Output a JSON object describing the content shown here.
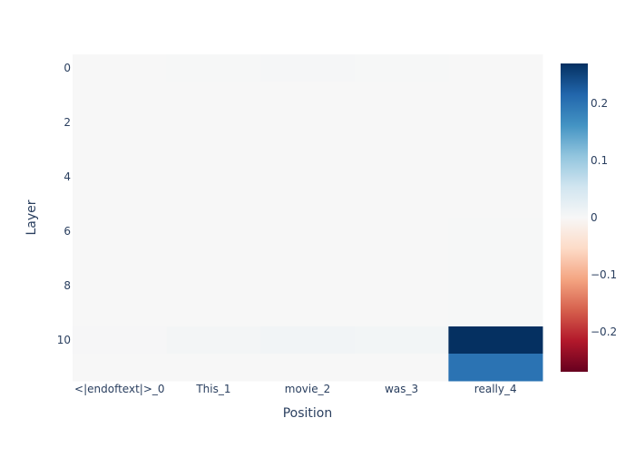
{
  "chart_data": {
    "type": "heatmap",
    "title": "",
    "xlabel": "Position",
    "ylabel": "Layer",
    "x_categories": [
      "<|endoftext|>_0",
      "This_1",
      "movie_2",
      "was_3",
      "really_4"
    ],
    "y_values": [
      0,
      1,
      2,
      3,
      4,
      5,
      6,
      7,
      8,
      9,
      10,
      11
    ],
    "y_tick_labels": [
      "0",
      "2",
      "4",
      "6",
      "8",
      "10"
    ],
    "y_tick_values": [
      0,
      2,
      4,
      6,
      8,
      10
    ],
    "y_reversed": true,
    "z": [
      [
        0.0,
        0.001,
        0.003,
        0.001,
        0.0
      ],
      [
        0.0,
        0.0,
        0.0,
        0.0,
        0.0
      ],
      [
        0.0,
        0.0,
        0.0,
        0.0,
        0.0
      ],
      [
        0.0,
        0.0,
        0.0,
        0.0,
        0.0
      ],
      [
        0.0,
        0.0,
        0.0,
        0.0,
        0.0
      ],
      [
        0.0,
        0.0,
        0.0,
        0.0,
        0.0
      ],
      [
        0.0,
        0.0,
        0.0,
        0.0,
        0.001
      ],
      [
        0.0,
        0.0,
        0.0,
        0.0,
        0.001
      ],
      [
        0.0,
        0.0,
        0.0,
        0.0,
        0.001
      ],
      [
        0.0,
        0.0,
        0.0,
        0.0,
        0.001
      ],
      [
        0.002,
        0.006,
        0.008,
        0.007,
        0.27
      ],
      [
        0.0,
        0.0,
        0.0,
        0.0,
        0.2
      ]
    ],
    "colorbar": {
      "min": -0.27,
      "max": 0.27,
      "tick_values": [
        0.2,
        0.1,
        0,
        -0.1,
        -0.2
      ],
      "tick_labels": [
        "0.2",
        "0.1",
        "0",
        "−0.1",
        "−0.2"
      ],
      "colorscale": [
        [
          0.0,
          "#67001f"
        ],
        [
          0.1,
          "#b2182b"
        ],
        [
          0.2,
          "#d6604d"
        ],
        [
          0.3,
          "#f4a582"
        ],
        [
          0.4,
          "#fddbc7"
        ],
        [
          0.5,
          "#f7f7f7"
        ],
        [
          0.6,
          "#d1e5f0"
        ],
        [
          0.7,
          "#92c5de"
        ],
        [
          0.8,
          "#4393c3"
        ],
        [
          0.9,
          "#2166ac"
        ],
        [
          1.0,
          "#053061"
        ]
      ]
    },
    "colors": {
      "text": "#2a3f5f",
      "background": "#ffffff"
    }
  }
}
